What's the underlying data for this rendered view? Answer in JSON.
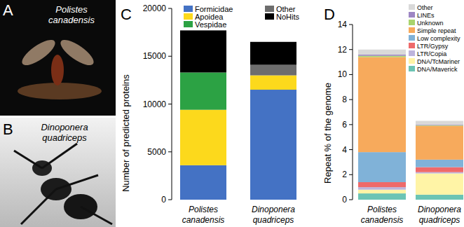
{
  "panels": [
    {
      "letter": "A",
      "caption": "Polistes canadensis"
    },
    {
      "letter": "B",
      "caption": "Dinoponera quadriceps"
    },
    {
      "letter": "C"
    },
    {
      "letter": "D"
    }
  ],
  "chart_data": [
    {
      "type": "bar",
      "stacked": true,
      "legend": "top",
      "y_label": "Number of predicted proteins",
      "categories": [
        "Polistes canadensis",
        "Dinoponera quadriceps"
      ],
      "ylim": [
        0,
        20000
      ],
      "yticks": [
        0,
        5000,
        10000,
        15000,
        20000
      ],
      "series": [
        {
          "name": "Formicidae",
          "color": "#4472c4",
          "values": [
            3600,
            11500
          ]
        },
        {
          "name": "Apoidea",
          "color": "#fcd91c",
          "values": [
            5800,
            1500
          ]
        },
        {
          "name": "Vespidae",
          "color": "#2ca244",
          "values": [
            3900,
            0
          ]
        },
        {
          "name": "Other",
          "color": "#6d6d6d",
          "values": [
            0,
            1100
          ]
        },
        {
          "name": "NoHits",
          "color": "#000000",
          "values": [
            4400,
            2400
          ]
        }
      ]
    },
    {
      "type": "bar",
      "stacked": true,
      "legend": "top right",
      "y_label": "Repeat % of the genome",
      "categories": [
        "Polistes canadensis",
        "Dinoponera quadriceps"
      ],
      "ylim": [
        0,
        14
      ],
      "yticks": [
        0,
        2,
        4,
        6,
        8,
        10,
        12,
        14
      ],
      "series": [
        {
          "name": "DNA/Maverick",
          "color": "#6cc4b4",
          "values": [
            0.5,
            0.4
          ]
        },
        {
          "name": "DNA/TcMariner",
          "color": "#fff4a6",
          "values": [
            0.3,
            1.7
          ]
        },
        {
          "name": "LTR/Copia",
          "color": "#bcb4dc",
          "values": [
            0.2,
            0.1
          ]
        },
        {
          "name": "LTR/Gypsy",
          "color": "#ee6a6a",
          "values": [
            0.4,
            0.4
          ]
        },
        {
          "name": "Low complexity",
          "color": "#80b2d8",
          "values": [
            2.4,
            0.6
          ]
        },
        {
          "name": "Simple repeat",
          "color": "#f7aa5c",
          "values": [
            7.6,
            2.7
          ]
        },
        {
          "name": "Unknown",
          "color": "#a9d46c",
          "values": [
            0.1,
            0.05
          ]
        },
        {
          "name": "LINEs",
          "color": "#9d86c4",
          "values": [
            0.1,
            0.05
          ]
        },
        {
          "name": "Other",
          "color": "#d9d9d9",
          "values": [
            0.4,
            0.3
          ]
        }
      ]
    }
  ]
}
